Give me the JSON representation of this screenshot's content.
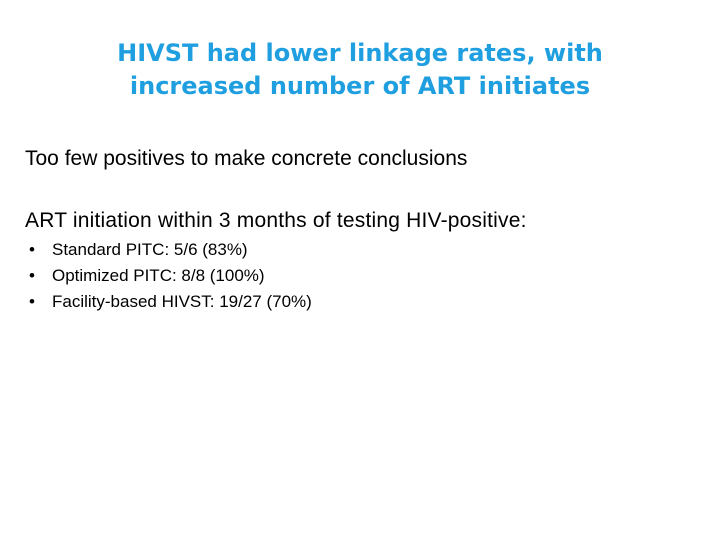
{
  "slide": {
    "title_lines": [
      "HIVST had lower linkage rates, with",
      "increased number of ART initiates"
    ],
    "subtitle": "Too few positives to make concrete conclusions",
    "section_heading": "ART initiation within 3 months of testing HIV-positive:",
    "bullet_char": "•",
    "bullets": [
      "Standard PITC: 5/6 (83%)",
      "Optimized PITC: 8/8 (100%)",
      "Facility-based HIVST: 19/27 (70%)"
    ],
    "colors": {
      "title": "#1f9fe0",
      "body": "#000000",
      "background": "#ffffff"
    }
  }
}
